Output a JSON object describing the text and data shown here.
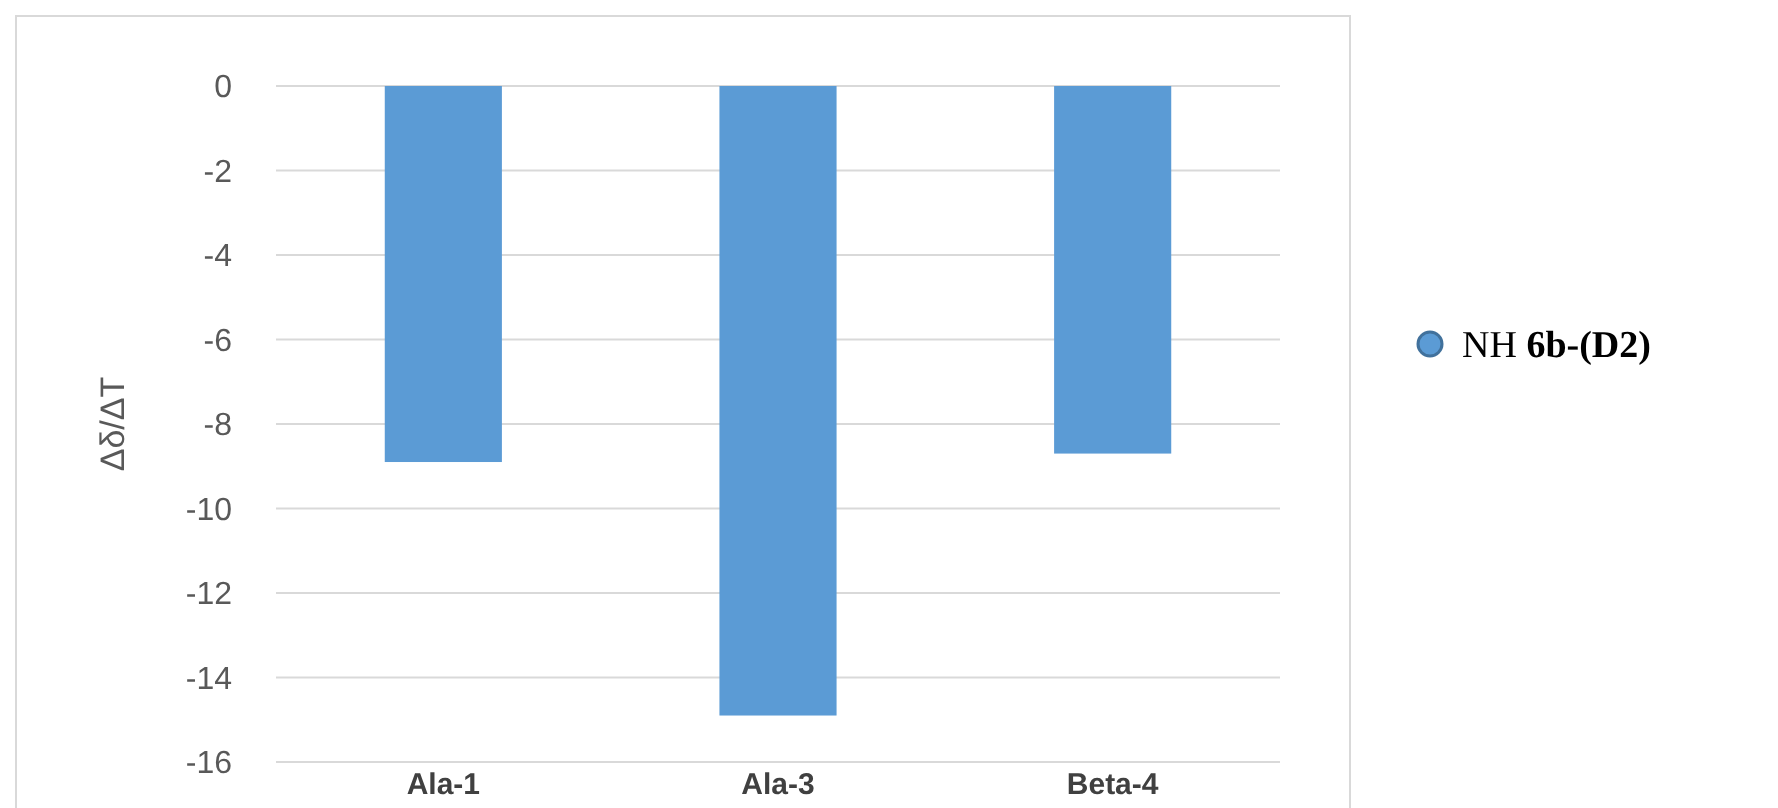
{
  "chart_data": {
    "type": "bar",
    "ylabel": "Δδ/ΔT",
    "categories": [
      "Ala-1",
      "Ala-3",
      "Beta-4"
    ],
    "series": [
      {
        "name": "NH 6b-(D2)",
        "color": "#5b9bd5",
        "values": [
          -8.9,
          -14.9,
          -8.7
        ]
      }
    ],
    "ylim": [
      -16,
      0
    ],
    "yticks": [
      -16,
      -14,
      -12,
      -10,
      -8,
      -6,
      -4,
      -2,
      0
    ],
    "grid": "y",
    "legend": "right"
  }
}
